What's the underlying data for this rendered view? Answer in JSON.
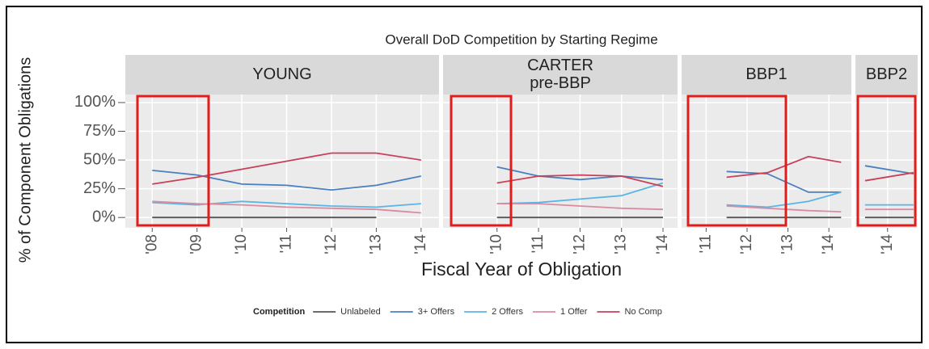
{
  "chart_data": {
    "type": "line",
    "title": "Overall DoD Competition by Starting Regime",
    "x_label": "Fiscal Year of Obligation",
    "y_label": "% of Component Obligations",
    "legend_title": "Competition",
    "ylim": [
      -9,
      107
    ],
    "yticks": [
      {
        "value": 0,
        "label": "0%"
      },
      {
        "value": 25,
        "label": "25%"
      },
      {
        "value": 50,
        "label": "50%"
      },
      {
        "value": 75,
        "label": "75%"
      },
      {
        "value": 100,
        "label": "100%"
      }
    ],
    "grid": true,
    "series": [
      {
        "name": "Unlabeled",
        "color": "#555555"
      },
      {
        "name": "3+ Offers",
        "color": "#4a7fc0"
      },
      {
        "name": "2 Offers",
        "color": "#5ab4e6"
      },
      {
        "name": "1 Offer",
        "color": "#d98ca0"
      },
      {
        "name": "No Comp",
        "color": "#c8405a"
      }
    ],
    "facets": [
      {
        "label": [
          "YOUNG"
        ],
        "xlim": [
          2007.4,
          2014.4
        ],
        "xticks": [
          {
            "value": 2008,
            "label": "'08"
          },
          {
            "value": 2009,
            "label": "'09"
          },
          {
            "value": 2010,
            "label": "'10"
          },
          {
            "value": 2011,
            "label": "'11"
          },
          {
            "value": 2012,
            "label": "'12"
          },
          {
            "value": 2013,
            "label": "'13"
          },
          {
            "value": 2014,
            "label": "'14"
          }
        ],
        "x": [
          2008,
          2009,
          2010,
          2011,
          2012,
          2013,
          2014
        ],
        "series": [
          {
            "values": [
              0,
              0,
              0,
              0,
              0,
              0,
              null
            ]
          },
          {
            "values": [
              41,
              37,
              29,
              28,
              24,
              28,
              36
            ]
          },
          {
            "values": [
              13,
              11,
              14,
              12,
              10,
              9,
              12
            ]
          },
          {
            "values": [
              14,
              12,
              11,
              9,
              8,
              7,
              4
            ]
          },
          {
            "values": [
              29,
              35,
              42,
              49,
              56,
              56,
              50
            ]
          }
        ]
      },
      {
        "label": [
          "CARTER",
          "pre-BBP"
        ],
        "xlim": [
          2008.7,
          2014.35
        ],
        "xticks": [
          {
            "value": 2010,
            "label": "'10"
          },
          {
            "value": 2011,
            "label": "'11"
          },
          {
            "value": 2012,
            "label": "'12"
          },
          {
            "value": 2013,
            "label": "'13"
          },
          {
            "value": 2014,
            "label": "'14"
          }
        ],
        "x": [
          2010,
          2011,
          2012,
          2013,
          2014
        ],
        "series": [
          {
            "values": [
              0,
              0,
              0,
              0,
              0
            ]
          },
          {
            "values": [
              44,
              36,
              33,
              36,
              33
            ]
          },
          {
            "values": [
              12,
              13,
              16,
              19,
              30
            ]
          },
          {
            "values": [
              12,
              12,
              10,
              8,
              7
            ]
          },
          {
            "values": [
              30,
              36,
              37,
              36,
              27
            ]
          }
        ]
      },
      {
        "label": [
          "BBP1"
        ],
        "xlim": [
          2010.4,
          2014.55
        ],
        "xticks": [
          {
            "value": 2011,
            "label": "'11"
          },
          {
            "value": 2012,
            "label": "'12"
          },
          {
            "value": 2013,
            "label": "'13"
          },
          {
            "value": 2014,
            "label": "'14"
          }
        ],
        "x": [
          2011.5,
          2012.5,
          2013.5,
          2014.3
        ],
        "series": [
          {
            "values": [
              0,
              0,
              0,
              0
            ]
          },
          {
            "values": [
              40,
              38,
              22,
              22
            ]
          },
          {
            "values": [
              11,
              9,
              14,
              22
            ]
          },
          {
            "values": [
              10,
              8,
              6,
              5
            ]
          },
          {
            "values": [
              35,
              39,
              53,
              48
            ]
          }
        ]
      },
      {
        "label": [
          "BBP2"
        ],
        "xlim": [
          2013.2,
          2014.75
        ],
        "xticks": [
          {
            "value": 2014,
            "label": "'14"
          }
        ],
        "x": [
          2013.44,
          2014.65
        ],
        "series": [
          {
            "values": [
              0,
              0
            ]
          },
          {
            "values": [
              45,
              38
            ]
          },
          {
            "values": [
              11,
              11
            ]
          },
          {
            "values": [
              7,
              7
            ]
          },
          {
            "values": [
              32,
              39
            ]
          }
        ]
      }
    ]
  }
}
